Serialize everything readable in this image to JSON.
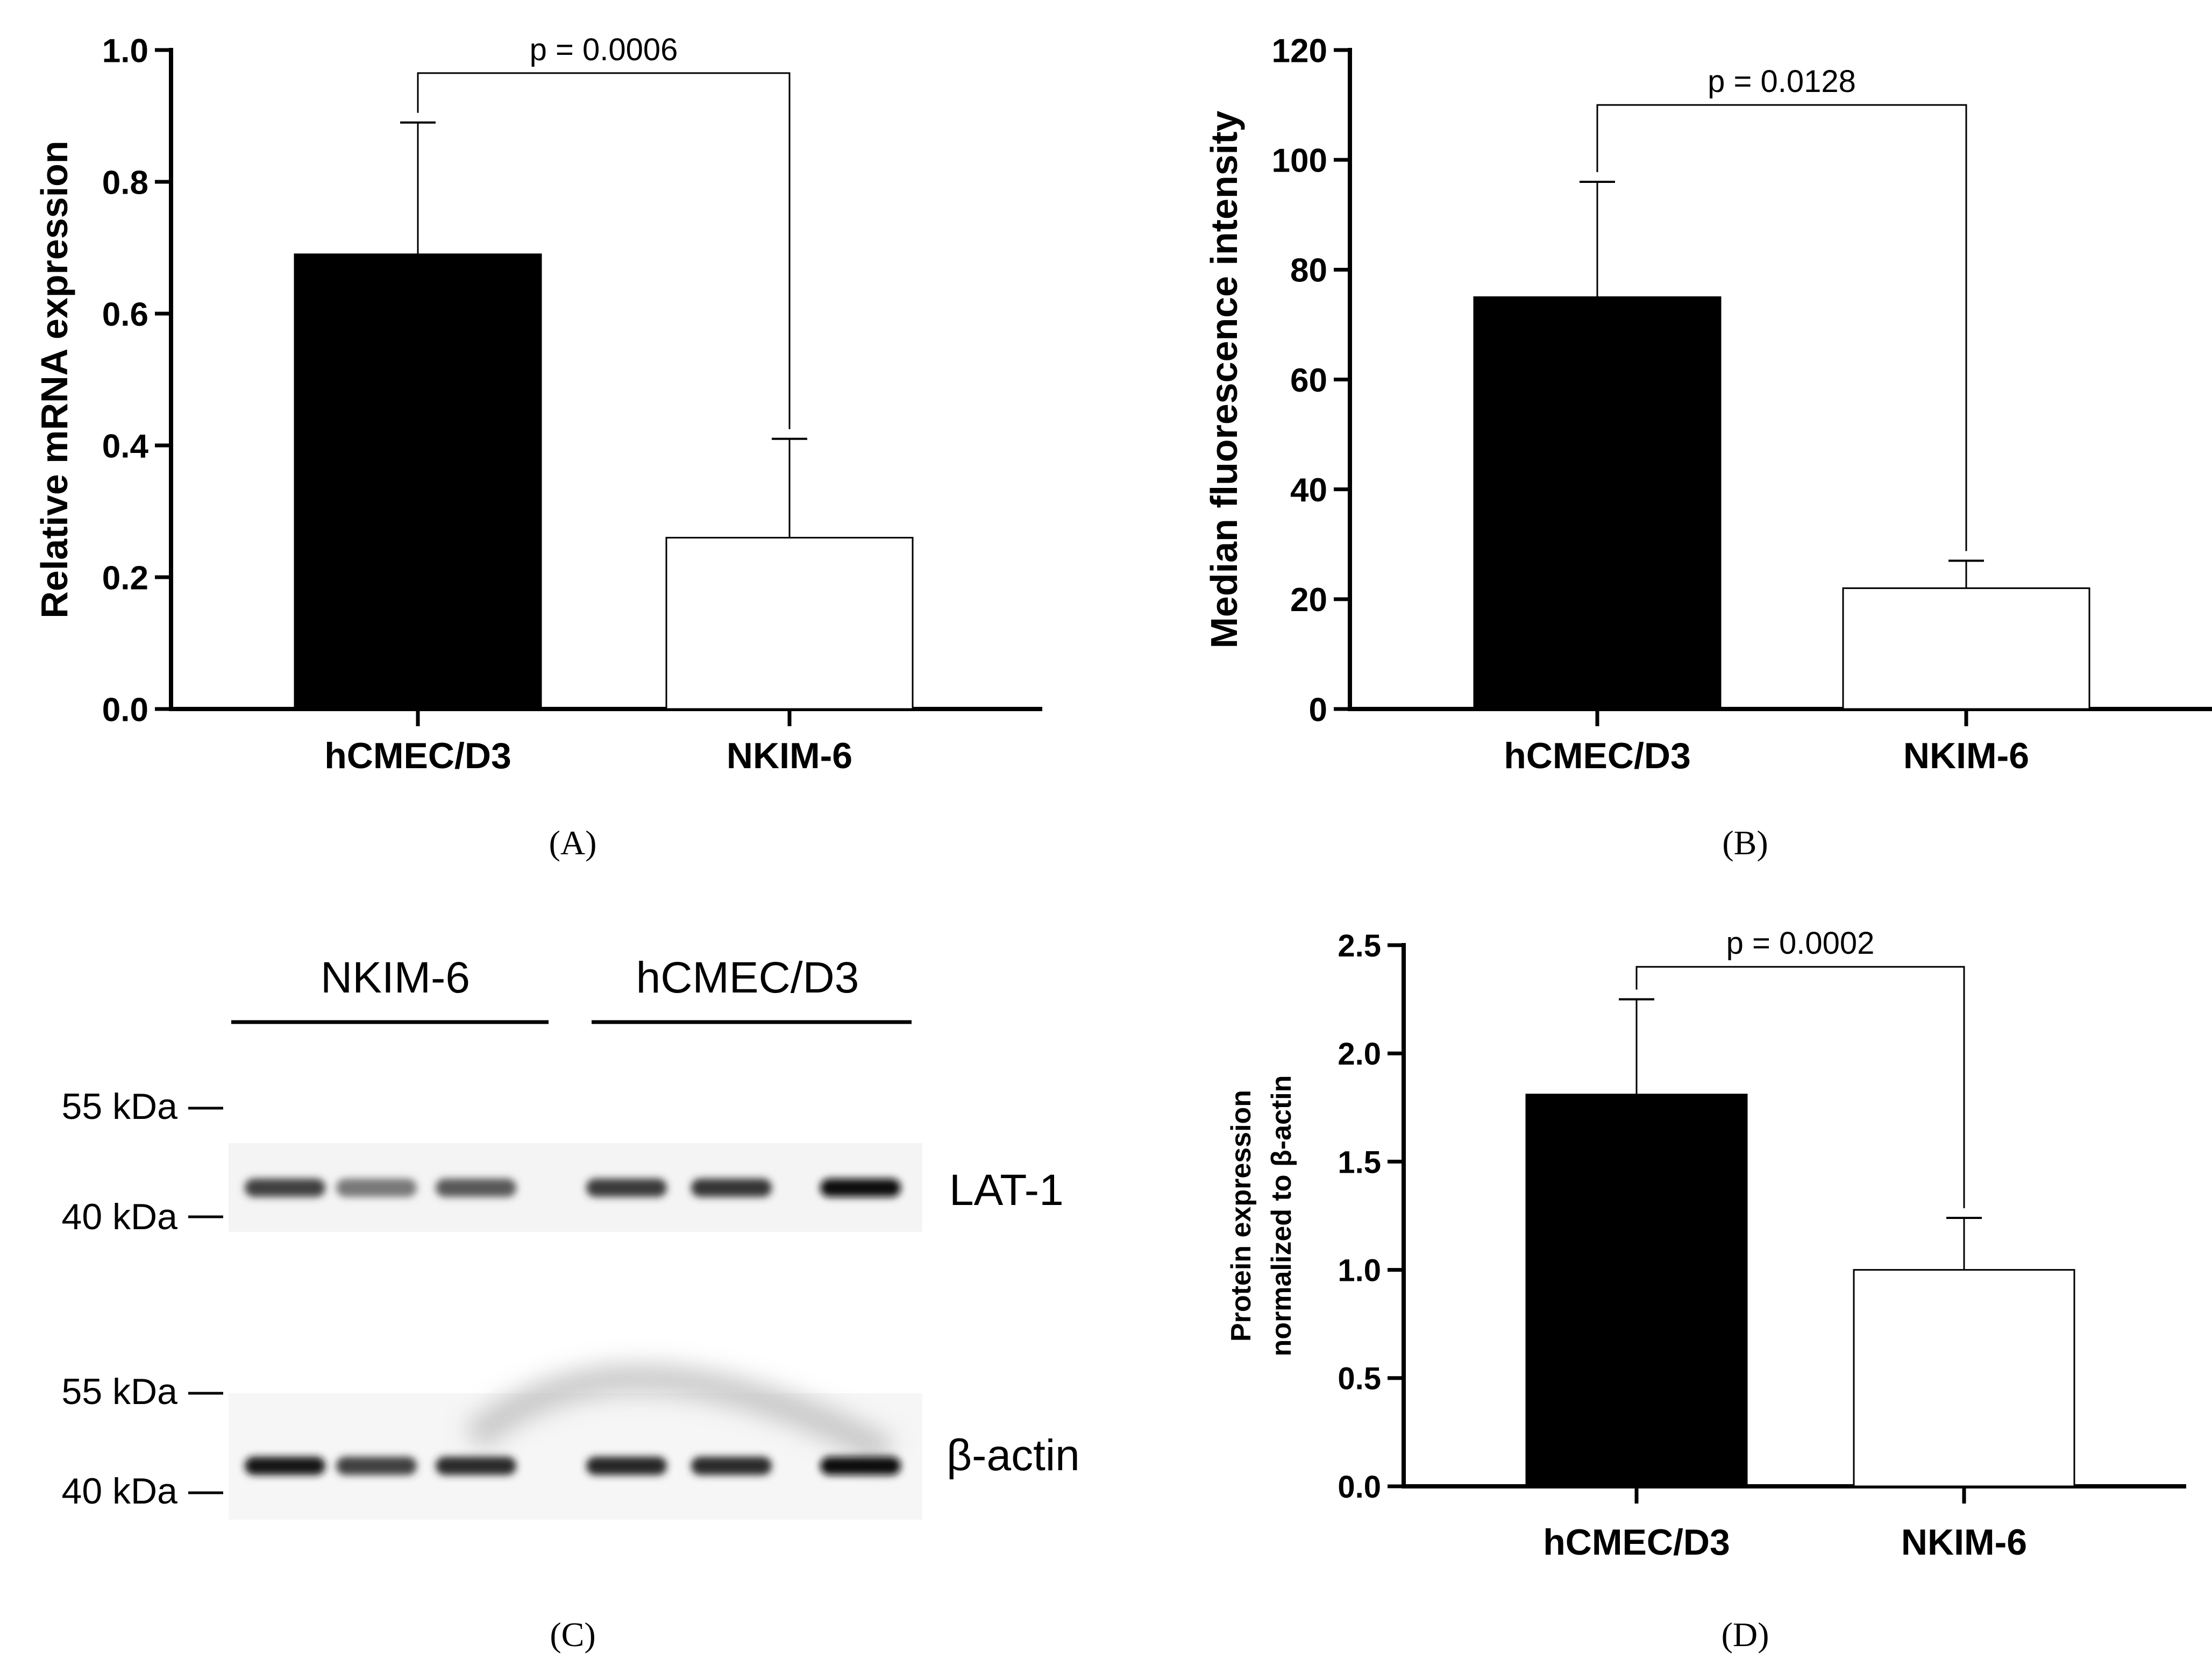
{
  "chart_data": [
    {
      "panel": "A",
      "type": "bar",
      "categories": [
        "hCMEC/D3",
        "NKIM-6"
      ],
      "values": [
        0.69,
        0.26
      ],
      "errors": [
        0.2,
        0.15
      ],
      "bar_fill": [
        "#000000",
        "#ffffff"
      ],
      "ylabel": "Relative mRNA expression",
      "ylim": [
        0,
        1.0
      ],
      "yticks": [
        0.0,
        0.2,
        0.4,
        0.6,
        0.8,
        1.0
      ],
      "yticklabels": [
        "0.0",
        "0.2",
        "0.4",
        "0.6",
        "0.8",
        "1.0"
      ],
      "significance": {
        "label": "p = 0.0006",
        "level": 0.965
      },
      "caption": "(A)"
    },
    {
      "panel": "B",
      "type": "bar",
      "categories": [
        "hCMEC/D3",
        "NKIM-6"
      ],
      "values": [
        75,
        22
      ],
      "errors": [
        21,
        5
      ],
      "bar_fill": [
        "#000000",
        "#ffffff"
      ],
      "ylabel": "Median fluorescence intensity",
      "ylim": [
        0,
        120
      ],
      "yticks": [
        0,
        20,
        40,
        60,
        80,
        100,
        120
      ],
      "yticklabels": [
        "0",
        "20",
        "40",
        "60",
        "80",
        "100",
        "120"
      ],
      "significance": {
        "label": "p = 0.0128",
        "level": 110
      },
      "caption": "(B)"
    },
    {
      "panel": "D",
      "type": "bar",
      "categories": [
        "hCMEC/D3",
        "NKIM-6"
      ],
      "values": [
        1.81,
        1.0
      ],
      "errors": [
        0.44,
        0.24
      ],
      "bar_fill": [
        "#000000",
        "#ffffff"
      ],
      "ylabel_lines": [
        "Protein expression",
        "normalized to β-actin"
      ],
      "ylim": [
        0,
        2.5
      ],
      "yticks": [
        0.0,
        0.5,
        1.0,
        1.5,
        2.0,
        2.5
      ],
      "yticklabels": [
        "0.0",
        "0.5",
        "1.0",
        "1.5",
        "2.0",
        "2.5"
      ],
      "significance": {
        "label": "p = 0.0002",
        "level": 2.4
      },
      "caption": "(D)"
    }
  ],
  "blot": {
    "caption": "(C)",
    "groups": [
      "NKIM-6",
      "hCMEC/D3"
    ],
    "markers": [
      "55 kDa",
      "40 kDa",
      "55 kDa",
      "40 kDa"
    ],
    "band_labels": [
      "LAT-1",
      "β-actin"
    ],
    "lat1_intensity": [
      0.78,
      0.55,
      0.68,
      0.8,
      0.82,
      1.0
    ],
    "actin_intensity": [
      0.95,
      0.78,
      0.86,
      0.88,
      0.86,
      1.0
    ]
  }
}
